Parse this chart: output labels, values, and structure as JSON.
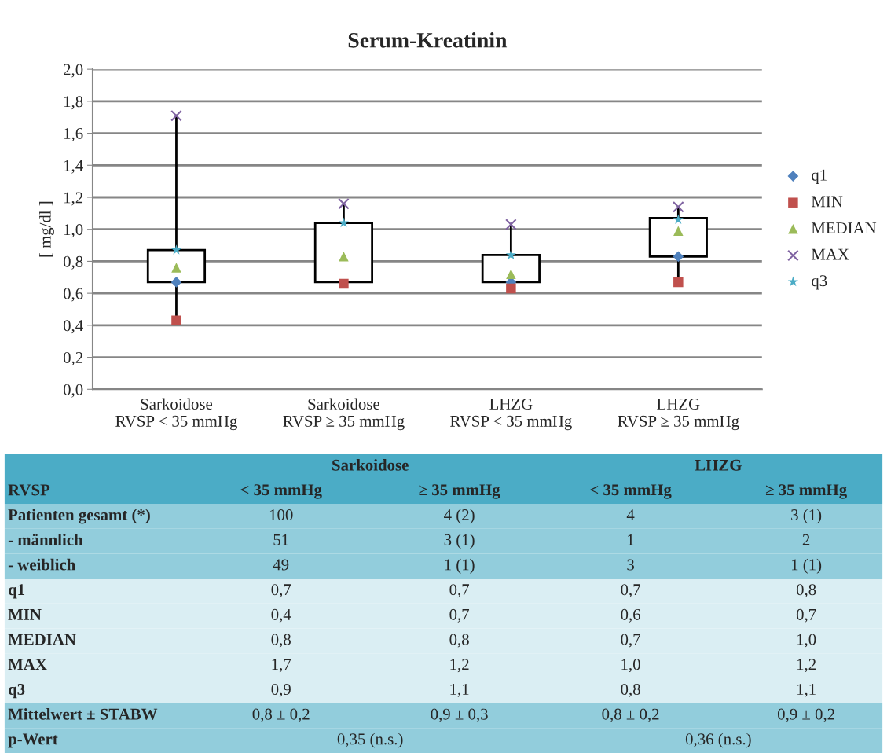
{
  "chart_data": [
    {
      "type": "box",
      "title": "Serum-Kreatinin",
      "ylabel": "[ mg/dl ]",
      "categories": [
        "Sarkoidose\nRVSP < 35 mmHg",
        "Sarkoidose\nRVSP ≥ 35 mmHg",
        "LHZG\nRVSP < 35 mmHg",
        "LHZG\nRVSP ≥ 35 mmHg"
      ],
      "boxes": [
        {
          "low": 0.43,
          "q1": 0.67,
          "q3": 0.87,
          "high": 1.71
        },
        {
          "low": 0.66,
          "q1": 0.67,
          "q3": 1.04,
          "high": 1.16
        },
        {
          "low": 0.63,
          "q1": 0.67,
          "q3": 0.84,
          "high": 1.03
        },
        {
          "low": 0.67,
          "q1": 0.83,
          "q3": 1.07,
          "high": 1.14
        }
      ],
      "series": [
        {
          "type": "scatter",
          "name": "q1",
          "color": "#4f81bd",
          "marker": "diamond",
          "values": [
            0.67,
            null,
            0.67,
            0.83
          ]
        },
        {
          "type": "scatter",
          "name": "MIN",
          "color": "#c0504d",
          "marker": "square",
          "values": [
            0.43,
            0.66,
            0.63,
            0.67
          ]
        },
        {
          "type": "scatter",
          "name": "MEDIAN",
          "color": "#9bbb59",
          "marker": "triangle",
          "values": [
            0.76,
            0.83,
            0.72,
            0.99
          ]
        },
        {
          "type": "scatter",
          "name": "MAX",
          "color": "#8064a2",
          "marker": "cross",
          "values": [
            1.71,
            1.16,
            1.03,
            1.14
          ]
        },
        {
          "type": "scatter",
          "name": "q3",
          "color": "#4bacc6",
          "marker": "star",
          "values": [
            0.87,
            1.04,
            0.84,
            1.06
          ]
        }
      ],
      "ylim": [
        0,
        2
      ],
      "yticks": [
        {
          "value": 0,
          "label": "0,0"
        },
        {
          "value": 0.2,
          "label": "0,2"
        },
        {
          "value": 0.4,
          "label": "0,4"
        },
        {
          "value": 0.6,
          "label": "0,6"
        },
        {
          "value": 0.8,
          "label": "0,8"
        },
        {
          "value": 1.0,
          "label": "1,0"
        },
        {
          "value": 1.2,
          "label": "1,2"
        },
        {
          "value": 1.4,
          "label": "1,4"
        },
        {
          "value": 1.6,
          "label": "1,6"
        },
        {
          "value": 1.8,
          "label": "1,8"
        },
        {
          "value": 2.0,
          "label": "2,0"
        }
      ],
      "grid": "y",
      "legend": "right"
    },
    {
      "type": "other",
      "annotations": [
        "Sarkoidose",
        "LHZG"
      ],
      "categories": [
        "< 35 mmHg",
        "≥ 35 mmHg",
        "< 35 mmHg",
        "≥ 35 mmHg"
      ],
      "y_categories": [
        "RVSP",
        "Patienten gesamt (*)",
        "- männlich",
        "- weiblich",
        "q1",
        "MIN",
        "MEDIAN",
        "MAX",
        "q3",
        "Mittelwert ± STABW",
        "p-Wert"
      ],
      "cell_labels": [
        [
          "100",
          "4 (2)",
          "4",
          "3 (1)"
        ],
        [
          "51",
          "3 (1)",
          "1",
          "2"
        ],
        [
          "49",
          "1 (1)",
          "3",
          "1 (1)"
        ],
        [
          "0,7",
          "0,7",
          "0,7",
          "0,8"
        ],
        [
          "0,4",
          "0,7",
          "0,6",
          "0,7"
        ],
        [
          "0,8",
          "0,8",
          "0,7",
          "1,0"
        ],
        [
          "1,7",
          "1,2",
          "1,0",
          "1,2"
        ],
        [
          "0,9",
          "1,1",
          "0,8",
          "1,1"
        ],
        [
          "0,8 ± 0,2",
          "0,9 ± 0,3",
          "0,8 ± 0,2",
          "0,9 ± 0,2"
        ],
        [
          "0,35 (n.s.)",
          null,
          "0,36 (n.s.)",
          null
        ]
      ],
      "colors": [
        "#4bacc6",
        "#4bacc6",
        "#92cddc",
        "#92cddc",
        "#92cddc",
        "#daeef3",
        "#daeef3",
        "#daeef3",
        "#daeef3",
        "#daeef3",
        "#92cddc",
        "#92cddc"
      ]
    }
  ]
}
